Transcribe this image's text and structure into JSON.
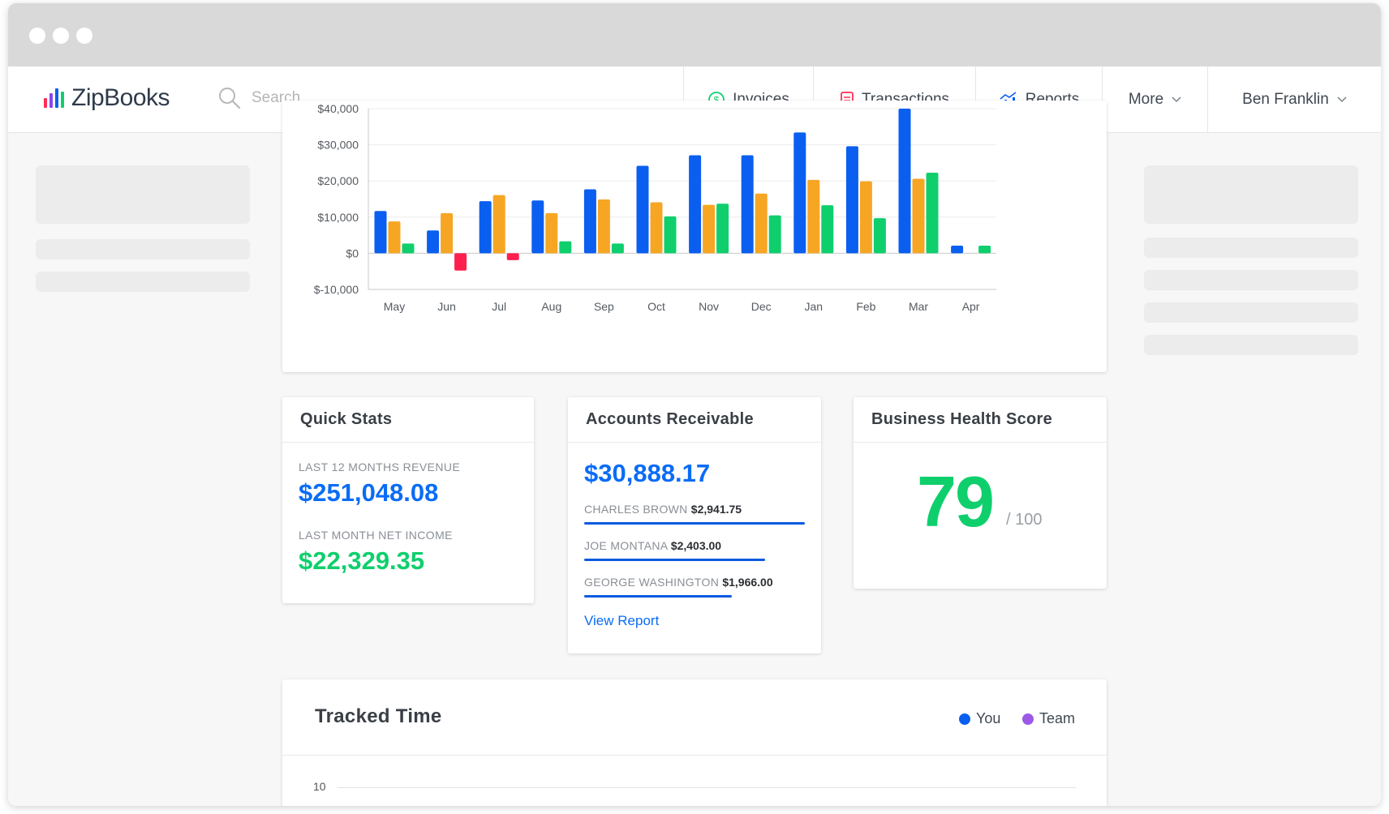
{
  "app": {
    "name": "ZipBooks"
  },
  "search": {
    "placeholder": "Search"
  },
  "nav": {
    "invoices": "Invoices",
    "transactions": "Transactions",
    "reports": "Reports",
    "more": "More",
    "user": "Ben Franklin"
  },
  "colors": {
    "revenue": "#0a5ff0",
    "expenses": "#f6a623",
    "profit": "#0fcf6d",
    "loss": "#ff1f4f",
    "accent": "#0a6cf5",
    "you": "#0a5ff0",
    "team": "#9b59e6"
  },
  "chart_data": {
    "type": "bar",
    "categories": [
      "May",
      "Jun",
      "Jul",
      "Aug",
      "Sep",
      "Oct",
      "Nov",
      "Dec",
      "Jan",
      "Feb",
      "Mar",
      "Apr"
    ],
    "series": [
      {
        "values": [
          11700,
          6300,
          14400,
          14600,
          17700,
          24200,
          27100,
          27100,
          33400,
          29600,
          40000,
          2100
        ]
      },
      {
        "values": [
          8800,
          11100,
          16100,
          11100,
          14900,
          14100,
          13400,
          16500,
          20300,
          19900,
          20600,
          0
        ]
      },
      {
        "values": [
          2700,
          -4800,
          -1900,
          3300,
          2700,
          10200,
          13700,
          10500,
          13300,
          9700,
          22300,
          2100
        ]
      }
    ],
    "y_ticks": [
      "$-10,000",
      "$0",
      "$10,000",
      "$20,000",
      "$30,000",
      "$40,000"
    ],
    "ylim": [
      -10000,
      40000
    ],
    "grid": true
  },
  "quick_stats": {
    "title": "Quick Stats",
    "revenue_label": "LAST 12 MONTHS REVENUE",
    "revenue_value": "$251,048.08",
    "income_label": "LAST MONTH NET INCOME",
    "income_value": "$22,329.35"
  },
  "receivable": {
    "title": "Accounts Receivable",
    "total": "$30,888.17",
    "rows": [
      {
        "name": "CHARLES BROWN",
        "amount": "$2,941.75",
        "share": 1.0
      },
      {
        "name": "JOE MONTANA",
        "amount": "$2,403.00",
        "share": 0.82
      },
      {
        "name": "GEORGE WASHINGTON",
        "amount": "$1,966.00",
        "share": 0.67
      }
    ],
    "link": "View Report"
  },
  "health": {
    "title": "Business Health Score",
    "score": "79",
    "total": "/ 100"
  },
  "tracked_time": {
    "title": "Tracked Time",
    "legend_you": "You",
    "legend_team": "Team",
    "y_tick": "10"
  }
}
